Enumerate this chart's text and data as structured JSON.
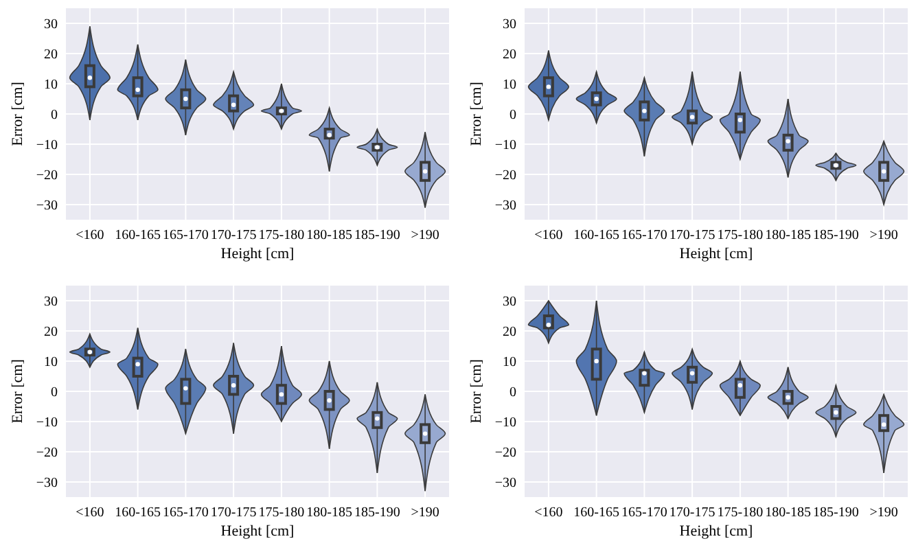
{
  "chart_data": [
    {
      "type": "box",
      "xlabel": "Height [cm]",
      "ylabel": "Error [cm]",
      "categories": [
        "<160",
        "160-165",
        "165-170",
        "170-175",
        "175-180",
        "180-185",
        "185-190",
        ">190"
      ],
      "colors": [
        "#4c70ab",
        "#5275b0",
        "#5a7cb3",
        "#6483b8",
        "#7089bd",
        "#7d93c2",
        "#8a9ec8",
        "#97a9d0"
      ],
      "ylim": [
        -35,
        35
      ],
      "yticks": [
        {
          "value": -30,
          "label": "−30"
        },
        {
          "value": -20,
          "label": "−20"
        },
        {
          "value": -10,
          "label": "−10"
        },
        0,
        10,
        20,
        30
      ],
      "grid": true,
      "boxes": [
        {
          "low": -2,
          "q1": 9,
          "median": 12,
          "q3": 16,
          "high": 29
        },
        {
          "low": -2,
          "q1": 6,
          "median": 8,
          "q3": 12,
          "high": 23
        },
        {
          "low": -7,
          "q1": 2,
          "median": 5,
          "q3": 8,
          "high": 18
        },
        {
          "low": -5,
          "q1": 1,
          "median": 3,
          "q3": 6,
          "high": 14
        },
        {
          "low": -5,
          "q1": 0,
          "median": 1,
          "q3": 2,
          "high": 10
        },
        {
          "low": -19,
          "q1": -8,
          "median": -7,
          "q3": -5,
          "high": 2
        },
        {
          "low": -17,
          "q1": -12,
          "median": -11,
          "q3": -10,
          "high": -5
        },
        {
          "low": -31,
          "q1": -22,
          "median": -19,
          "q3": -16,
          "high": -6
        }
      ]
    },
    {
      "type": "box",
      "xlabel": "Height [cm]",
      "ylabel": "Error [cm]",
      "categories": [
        "<160",
        "160-165",
        "165-170",
        "170-175",
        "175-180",
        "180-185",
        "185-190",
        ">190"
      ],
      "colors": [
        "#4c70ab",
        "#5275b0",
        "#5a7cb3",
        "#6483b8",
        "#7089bd",
        "#7d93c2",
        "#8a9ec8",
        "#97a9d0"
      ],
      "ylim": [
        -35,
        35
      ],
      "yticks": [
        {
          "value": -30,
          "label": "−30"
        },
        {
          "value": -20,
          "label": "−20"
        },
        {
          "value": -10,
          "label": "−10"
        },
        0,
        10,
        20,
        30
      ],
      "grid": true,
      "boxes": [
        {
          "low": -2,
          "q1": 6,
          "median": 9,
          "q3": 12,
          "high": 21
        },
        {
          "low": -3,
          "q1": 3,
          "median": 5,
          "q3": 7,
          "high": 14
        },
        {
          "low": -14,
          "q1": -2,
          "median": 1,
          "q3": 4,
          "high": 12
        },
        {
          "low": -10,
          "q1": -3,
          "median": -1,
          "q3": 1,
          "high": 14
        },
        {
          "low": -15,
          "q1": -6,
          "median": -2,
          "q3": 0,
          "high": 14
        },
        {
          "low": -21,
          "q1": -12,
          "median": -9,
          "q3": -7,
          "high": 5
        },
        {
          "low": -22,
          "q1": -18,
          "median": -17,
          "q3": -16,
          "high": -13
        },
        {
          "low": -30,
          "q1": -22,
          "median": -19,
          "q3": -16,
          "high": -9
        }
      ]
    },
    {
      "type": "box",
      "xlabel": "Height [cm]",
      "ylabel": "Error [cm]",
      "categories": [
        "<160",
        "160-165",
        "165-170",
        "170-175",
        "175-180",
        "180-185",
        "185-190",
        ">190"
      ],
      "colors": [
        "#4c70ab",
        "#5275b0",
        "#5a7cb3",
        "#6483b8",
        "#7089bd",
        "#7d93c2",
        "#8a9ec8",
        "#97a9d0"
      ],
      "ylim": [
        -35,
        35
      ],
      "yticks": [
        {
          "value": -30,
          "label": "−30"
        },
        {
          "value": -20,
          "label": "−20"
        },
        {
          "value": -10,
          "label": "−10"
        },
        0,
        10,
        20,
        30
      ],
      "grid": true,
      "boxes": [
        {
          "low": 8,
          "q1": 12,
          "median": 13,
          "q3": 14,
          "high": 19
        },
        {
          "low": -6,
          "q1": 5,
          "median": 9,
          "q3": 11,
          "high": 21
        },
        {
          "low": -14,
          "q1": -4,
          "median": 1,
          "q3": 4,
          "high": 14
        },
        {
          "low": -14,
          "q1": -1,
          "median": 2,
          "q3": 5,
          "high": 16
        },
        {
          "low": -10,
          "q1": -4,
          "median": -1,
          "q3": 2,
          "high": 15
        },
        {
          "low": -19,
          "q1": -6,
          "median": -3,
          "q3": 0,
          "high": 10
        },
        {
          "low": -27,
          "q1": -12,
          "median": -9,
          "q3": -7,
          "high": 3
        },
        {
          "low": -33,
          "q1": -17,
          "median": -14,
          "q3": -11,
          "high": -1
        }
      ]
    },
    {
      "type": "box",
      "xlabel": "Height [cm]",
      "ylabel": "Error [cm]",
      "categories": [
        "<160",
        "160-165",
        "165-170",
        "170-175",
        "175-180",
        "180-185",
        "185-190",
        ">190"
      ],
      "colors": [
        "#4c70ab",
        "#5275b0",
        "#5a7cb3",
        "#6483b8",
        "#7089bd",
        "#7d93c2",
        "#8a9ec8",
        "#97a9d0"
      ],
      "ylim": [
        -35,
        35
      ],
      "yticks": [
        {
          "value": -30,
          "label": "−30"
        },
        {
          "value": -20,
          "label": "−20"
        },
        {
          "value": -10,
          "label": "−10"
        },
        0,
        10,
        20,
        30
      ],
      "grid": true,
      "boxes": [
        {
          "low": 16,
          "q1": 21,
          "median": 22,
          "q3": 25,
          "high": 30
        },
        {
          "low": -8,
          "q1": 4,
          "median": 10,
          "q3": 14,
          "high": 30
        },
        {
          "low": -7,
          "q1": 2,
          "median": 6,
          "q3": 7,
          "high": 13
        },
        {
          "low": -6,
          "q1": 3,
          "median": 6,
          "q3": 8,
          "high": 14
        },
        {
          "low": -8,
          "q1": -2,
          "median": 2,
          "q3": 4,
          "high": 10
        },
        {
          "low": -9,
          "q1": -4,
          "median": -2,
          "q3": 0,
          "high": 8
        },
        {
          "low": -15,
          "q1": -9,
          "median": -7,
          "q3": -5,
          "high": 2
        },
        {
          "low": -27,
          "q1": -13,
          "median": -11,
          "q3": -8,
          "high": -1
        }
      ]
    }
  ]
}
